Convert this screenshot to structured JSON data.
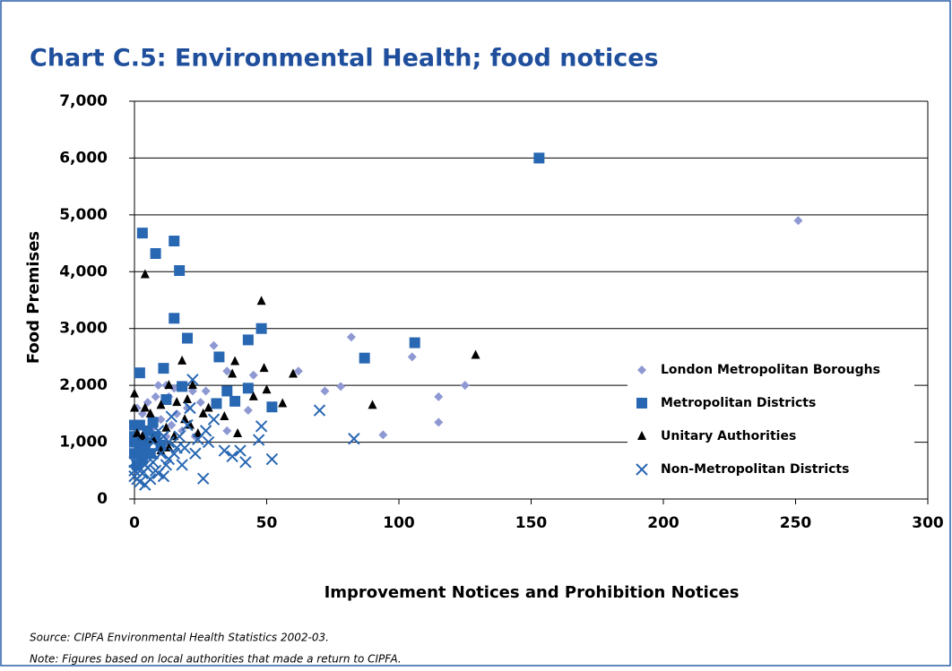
{
  "chart_data": {
    "type": "scatter",
    "title": "Chart C.5: Environmental Health; food notices",
    "xlabel": "Improvement Notices and Prohibition Notices",
    "ylabel": "Food Premises",
    "notes": [
      "Source: CIPFA Environmental Health Statistics 2002-03.",
      "Note: Figures based on local authorities that made a return to CIPFA."
    ],
    "xlim": [
      0,
      300
    ],
    "xticks": [
      0,
      50,
      100,
      150,
      200,
      250,
      300
    ],
    "ylim": [
      0,
      7000
    ],
    "yticks": [
      0,
      {
        "value": 1000,
        "label": "1,000"
      },
      {
        "value": 2000,
        "label": "2,000"
      },
      {
        "value": 3000,
        "label": "3,000"
      },
      {
        "value": 4000,
        "label": "4,000"
      },
      {
        "value": 5000,
        "label": "5,000"
      },
      {
        "value": 6000,
        "label": "6,000"
      },
      {
        "value": 7000,
        "label": "7,000"
      }
    ],
    "grid": true,
    "series": [
      {
        "name": "London Metropolitan Boroughs",
        "color": "#8e98d2",
        "marker": "diamond",
        "x": [
          251,
          82,
          30,
          105,
          125,
          115,
          115,
          94,
          78,
          72,
          62,
          45,
          43,
          35,
          35,
          27,
          22,
          15,
          12,
          9,
          8,
          5,
          3,
          2,
          10,
          14,
          18,
          20,
          25,
          6,
          12,
          16,
          4,
          7,
          1,
          13,
          23
        ],
        "values": [
          4900,
          2850,
          2700,
          2500,
          2000,
          1800,
          1350,
          1130,
          1980,
          1900,
          2250,
          2180,
          1560,
          2250,
          1200,
          1900,
          1900,
          1950,
          2000,
          2000,
          1800,
          1700,
          1500,
          1300,
          1400,
          1300,
          1200,
          1600,
          1700,
          1000,
          1100,
          1500,
          1150,
          1250,
          1600,
          1800,
          1100
        ]
      },
      {
        "name": "Metropolitan Districts",
        "color": "#2867b2",
        "marker": "square",
        "x": [
          153,
          3,
          8,
          15,
          17,
          15,
          20,
          48,
          43,
          106,
          87,
          32,
          2,
          11,
          18,
          43,
          35,
          31,
          38,
          52,
          12,
          0,
          2,
          5,
          7,
          0,
          2,
          4,
          0,
          3,
          6,
          1,
          8,
          0,
          4,
          10
        ],
        "values": [
          6000,
          4680,
          4320,
          4540,
          4020,
          3180,
          2830,
          3000,
          2800,
          2750,
          2480,
          2500,
          2220,
          2300,
          1980,
          1950,
          1900,
          1680,
          1720,
          1620,
          1750,
          1300,
          1300,
          1200,
          1350,
          1000,
          900,
          1000,
          800,
          700,
          800,
          600,
          1100,
          1100,
          850,
          950
        ]
      },
      {
        "name": "Unitary Authorities",
        "color": "#000000",
        "marker": "triangle",
        "x": [
          4,
          48,
          129,
          18,
          38,
          60,
          37,
          49,
          50,
          45,
          56,
          90,
          20,
          13,
          22,
          26,
          34,
          0,
          0,
          4,
          10,
          16,
          21,
          24,
          39,
          13,
          10,
          7,
          1,
          3,
          19,
          15,
          28,
          6,
          12
        ],
        "values": [
          3950,
          3480,
          2530,
          2430,
          2420,
          2200,
          2200,
          2300,
          1920,
          1800,
          1680,
          1650,
          1750,
          2000,
          2000,
          1500,
          1450,
          1850,
          1600,
          1600,
          1650,
          1700,
          1300,
          1150,
          1150,
          900,
          850,
          1050,
          1150,
          1100,
          1400,
          1100,
          1600,
          1500,
          1250
        ]
      },
      {
        "name": "Non-Metropolitan Districts",
        "color": "#2867b2",
        "marker": "cross",
        "x": [
          70,
          83,
          48,
          52,
          47,
          42,
          37,
          40,
          34,
          28,
          26,
          30,
          27,
          24,
          22,
          21,
          20,
          19,
          18,
          17,
          15,
          14,
          13,
          12,
          11,
          10,
          9,
          8,
          7,
          6,
          5,
          4,
          4,
          3,
          2,
          1,
          0,
          0,
          1,
          2,
          3,
          5,
          6,
          7,
          9,
          11,
          13,
          16,
          23,
          0,
          2
        ],
        "values": [
          1560,
          1060,
          1280,
          700,
          1040,
          650,
          750,
          850,
          850,
          1000,
          360,
          1400,
          1200,
          1050,
          2100,
          1600,
          1300,
          900,
          600,
          1100,
          800,
          1450,
          1000,
          600,
          400,
          800,
          1200,
          500,
          650,
          350,
          900,
          250,
          600,
          450,
          800,
          350,
          500,
          650,
          750,
          550,
          1000,
          550,
          1050,
          800,
          450,
          1100,
          700,
          900,
          800,
          400,
          300
        ]
      }
    ]
  }
}
